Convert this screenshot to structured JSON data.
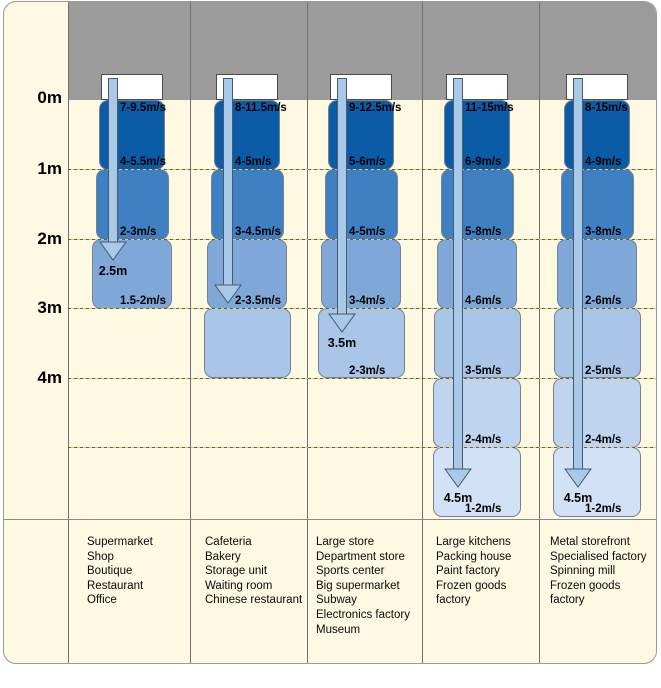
{
  "figure_title": "",
  "axis": {
    "labels": [
      "0m",
      "1m",
      "2m",
      "3m",
      "4m"
    ]
  },
  "columns": [
    {
      "velocities": [
        "7-9.5m/s",
        "4-5.5m/s",
        "2-3m/s",
        "1.5-2m/s"
      ],
      "segment_count": 3,
      "depth_label": "2.5m",
      "applications": [
        "Supermarket",
        "Shop",
        "Boutique",
        "Restaurant",
        "Office"
      ]
    },
    {
      "velocities": [
        "8-11.5m/s",
        "4-5m/s",
        "3-4.5m/s",
        "2-3.5m/s"
      ],
      "segment_count": 4,
      "depth_label": "",
      "applications": [
        "Cafeteria",
        "Bakery",
        "Storage unit",
        "Waiting room",
        "Chinese restaurant"
      ]
    },
    {
      "velocities": [
        "9-12.5m/s",
        "5-6m/s",
        "4-5m/s",
        "3-4m/s",
        "2-3m/s"
      ],
      "segment_count": 4,
      "depth_label": "3.5m",
      "applications": [
        "Large store",
        "Department store",
        "Sports center",
        "Big supermarket",
        "Subway",
        "Electronics factory",
        "Museum"
      ]
    },
    {
      "velocities": [
        "11-15m/s",
        "6-9m/s",
        "5-8m/s",
        "4-6m/s",
        "3-5m/s",
        "2-4m/s",
        "1-2m/s"
      ],
      "segment_count": 6,
      "depth_label": "4.5m",
      "applications": [
        "Large kitchens",
        "Packing house",
        "Paint factory",
        "Frozen goods factory"
      ]
    },
    {
      "velocities": [
        "8-15m/s",
        "4-9m/s",
        "3-8m/s",
        "2-6m/s",
        "2-5m/s",
        "2-4m/s",
        "1-2m/s"
      ],
      "segment_count": 6,
      "depth_label": "4.5m",
      "applications": [
        "Metal storefront",
        "Specialised factory",
        "Spinning mill",
        "Frozen goods factory"
      ]
    }
  ],
  "colors": {
    "background_cream": "#fdf9e3",
    "outdoor_gray": "#9b9b9b",
    "segment_depth_shades": [
      "#0b5ba7",
      "#3f80c2",
      "#7fa8d9",
      "#a9c5e8",
      "#bfd4ef",
      "#d3e1f6"
    ],
    "arrow_fill": "#a9c9e9",
    "arrow_stroke": "#47586f",
    "grid_dash_dark": "#6a5f40",
    "grid_dash_gold": "#d8c87d"
  }
}
